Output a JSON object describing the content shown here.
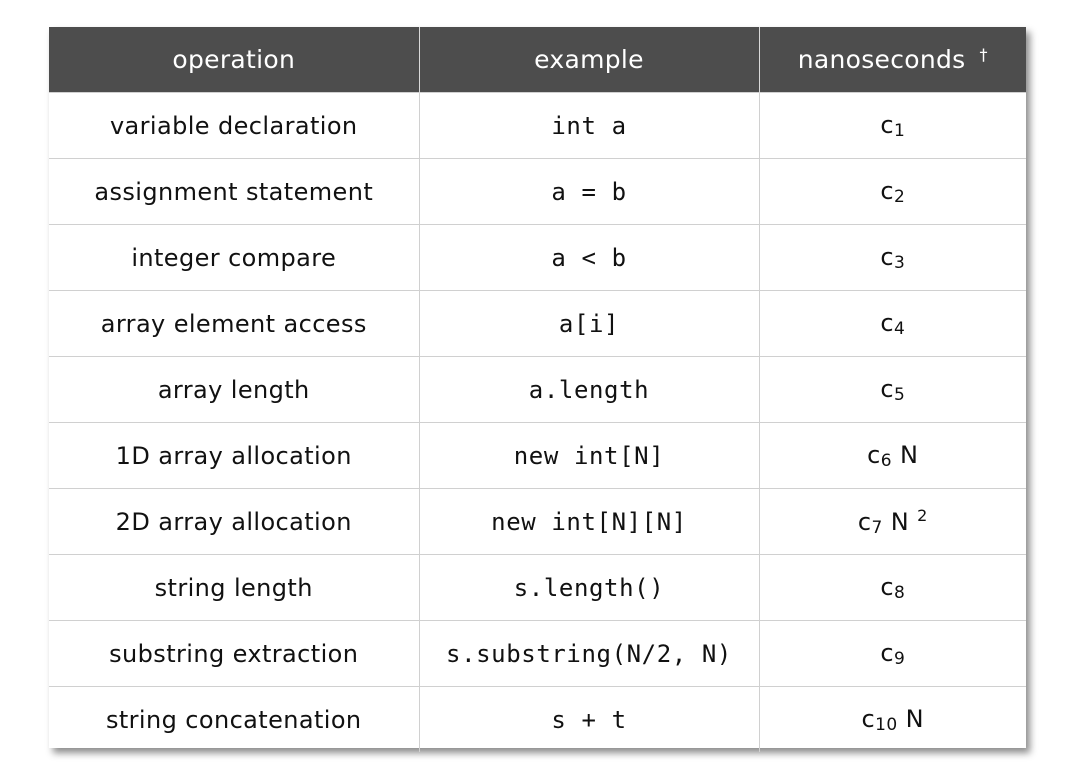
{
  "header": {
    "operation": "operation",
    "example": "example",
    "nanoseconds": "nanoseconds",
    "dagger": "†"
  },
  "rows": [
    {
      "operation": "variable declaration",
      "example": "int a",
      "cost_base": "c",
      "cost_sub": "1",
      "cost_tail": "",
      "cost_sup": ""
    },
    {
      "operation": "assignment statement",
      "example": "a = b",
      "cost_base": "c",
      "cost_sub": "2",
      "cost_tail": "",
      "cost_sup": ""
    },
    {
      "operation": "integer compare",
      "example": "a < b",
      "cost_base": "c",
      "cost_sub": "3",
      "cost_tail": "",
      "cost_sup": ""
    },
    {
      "operation": "array element access",
      "example": "a[i]",
      "cost_base": "c",
      "cost_sub": "4",
      "cost_tail": "",
      "cost_sup": ""
    },
    {
      "operation": "array length",
      "example": "a.length",
      "cost_base": "c",
      "cost_sub": "5",
      "cost_tail": "",
      "cost_sup": ""
    },
    {
      "operation": "1D array allocation",
      "example": "new int[N]",
      "cost_base": "c",
      "cost_sub": "6",
      "cost_tail": "N",
      "cost_sup": ""
    },
    {
      "operation": "2D array allocation",
      "example": "new int[N][N]",
      "cost_base": "c",
      "cost_sub": "7",
      "cost_tail": "N",
      "cost_sup": "2"
    },
    {
      "operation": "string length",
      "example": "s.length()",
      "cost_base": "c",
      "cost_sub": "8",
      "cost_tail": "",
      "cost_sup": ""
    },
    {
      "operation": "substring extraction",
      "example": "s.substring(N/2, N)",
      "cost_base": "c",
      "cost_sub": "9",
      "cost_tail": "",
      "cost_sup": ""
    },
    {
      "operation": "string concatenation",
      "example": "s + t",
      "cost_base": "c",
      "cost_sub": "10",
      "cost_tail": "N",
      "cost_sup": ""
    }
  ]
}
